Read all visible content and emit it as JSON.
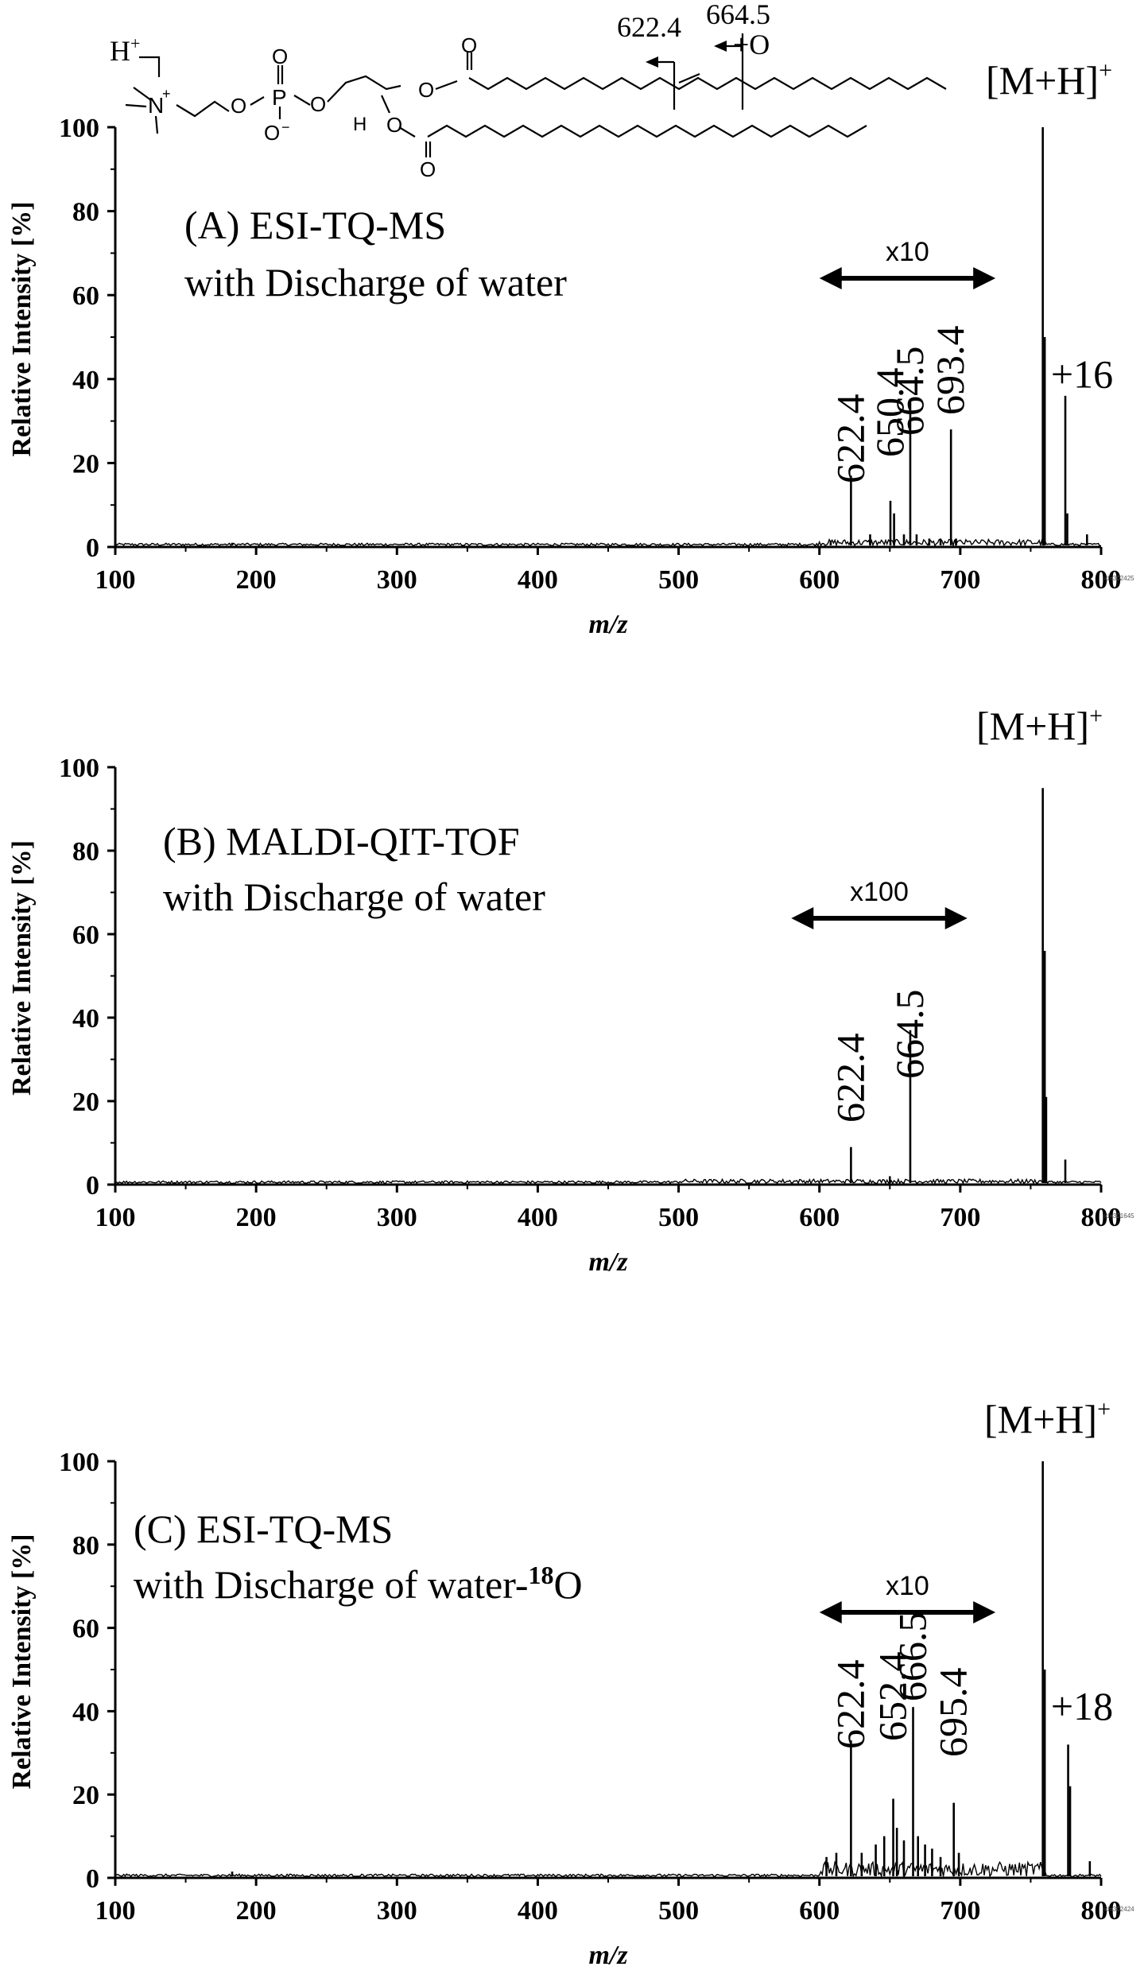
{
  "structure_labels": {
    "proton": "H",
    "proton_sup": "+",
    "cleave1": "622.4",
    "cleave2": "664.5",
    "cleave2_note": "+O"
  },
  "chart_data": [
    {
      "type": "line",
      "panel": "A",
      "title_line1": "(A) ESI-TQ-MS",
      "title_line2": "with Discharge of water",
      "xlabel": "m/z",
      "ylabel": "Relative Intensity [%]",
      "xlim": [
        100,
        800
      ],
      "ylim": [
        0,
        100
      ],
      "xticks": [
        "100",
        "200",
        "300",
        "400",
        "500",
        "600",
        "700",
        "800"
      ],
      "yticks": [
        "0",
        "20",
        "40",
        "60",
        "80",
        "100"
      ],
      "magnification": "x10",
      "mag_range": [
        600,
        725
      ],
      "stamp": "id=302425",
      "peaks": [
        {
          "x": 183,
          "y": 1.0
        },
        {
          "x": 608,
          "y": 1.5
        },
        {
          "x": 622.4,
          "y": 17
        },
        {
          "x": 636,
          "y": 3
        },
        {
          "x": 650.4,
          "y": 11
        },
        {
          "x": 653,
          "y": 8
        },
        {
          "x": 660,
          "y": 3
        },
        {
          "x": 664.5,
          "y": 35
        },
        {
          "x": 669,
          "y": 3
        },
        {
          "x": 678,
          "y": 2
        },
        {
          "x": 686,
          "y": 2
        },
        {
          "x": 693.4,
          "y": 28
        },
        {
          "x": 697,
          "y": 2
        },
        {
          "x": 758.6,
          "y": 100
        },
        {
          "x": 760,
          "y": 50
        },
        {
          "x": 774.6,
          "y": 36
        },
        {
          "x": 776,
          "y": 8
        },
        {
          "x": 790,
          "y": 3
        }
      ],
      "labels": [
        {
          "text": "622.4",
          "x": 622.4
        },
        {
          "text": "650.4",
          "x": 650.4
        },
        {
          "text": "664.5",
          "x": 664.5
        },
        {
          "text": "693.4",
          "x": 693.4
        }
      ],
      "molecular_ion": "[M+H]",
      "molecular_ion_sup": "+",
      "shift_label": "+16"
    },
    {
      "type": "line",
      "panel": "B",
      "title_line1": "(B) MALDI-QIT-TOF",
      "title_line2": " with Discharge of water",
      "xlabel": "m/z",
      "ylabel": "Relative Intensity [%]",
      "xlim": [
        100,
        800
      ],
      "ylim": [
        0,
        100
      ],
      "xticks": [
        "100",
        "200",
        "300",
        "400",
        "500",
        "600",
        "700",
        "800"
      ],
      "yticks": [
        "0",
        "20",
        "40",
        "60",
        "80",
        "100"
      ],
      "magnification": "x100",
      "mag_range": [
        580,
        705
      ],
      "stamp": "id=301645",
      "peaks": [
        {
          "x": 622.4,
          "y": 9
        },
        {
          "x": 650,
          "y": 2
        },
        {
          "x": 664.5,
          "y": 37
        },
        {
          "x": 758.6,
          "y": 95
        },
        {
          "x": 760,
          "y": 56
        },
        {
          "x": 761,
          "y": 21
        },
        {
          "x": 774.6,
          "y": 6
        }
      ],
      "labels": [
        {
          "text": "622.4",
          "x": 622.4
        },
        {
          "text": "664.5",
          "x": 664.5
        }
      ],
      "molecular_ion": "[M+H]",
      "molecular_ion_sup": "+"
    },
    {
      "type": "line",
      "panel": "C",
      "title_line1": "(C) ESI-TQ-MS",
      "title_line2": "with Discharge of water-",
      "title_line2_sup": "18",
      "title_line2_end": "O",
      "xlabel": "m/z",
      "ylabel": "Relative Intensity [%]",
      "xlim": [
        100,
        800
      ],
      "ylim": [
        0,
        100
      ],
      "xticks": [
        "100",
        "200",
        "300",
        "400",
        "500",
        "600",
        "700",
        "800"
      ],
      "yticks": [
        "0",
        "20",
        "40",
        "60",
        "80",
        "100"
      ],
      "magnification": "x10",
      "mag_range": [
        600,
        725
      ],
      "stamp": "id=302424",
      "peaks": [
        {
          "x": 183,
          "y": 1.5
        },
        {
          "x": 605,
          "y": 5
        },
        {
          "x": 612,
          "y": 6
        },
        {
          "x": 622.4,
          "y": 33
        },
        {
          "x": 630,
          "y": 6
        },
        {
          "x": 640,
          "y": 8
        },
        {
          "x": 646,
          "y": 10
        },
        {
          "x": 652.4,
          "y": 19
        },
        {
          "x": 655,
          "y": 12
        },
        {
          "x": 660,
          "y": 9
        },
        {
          "x": 666.5,
          "y": 41
        },
        {
          "x": 670,
          "y": 10
        },
        {
          "x": 675,
          "y": 8
        },
        {
          "x": 680,
          "y": 7
        },
        {
          "x": 686,
          "y": 5
        },
        {
          "x": 695.4,
          "y": 18
        },
        {
          "x": 699,
          "y": 6
        },
        {
          "x": 758.6,
          "y": 100
        },
        {
          "x": 760,
          "y": 50
        },
        {
          "x": 776.6,
          "y": 32
        },
        {
          "x": 778,
          "y": 22
        },
        {
          "x": 792,
          "y": 4
        }
      ],
      "labels": [
        {
          "text": "622.4",
          "x": 622.4
        },
        {
          "text": "652.4",
          "x": 652.4
        },
        {
          "text": "666.5",
          "x": 666.5
        },
        {
          "text": "695.4",
          "x": 695.4
        }
      ],
      "molecular_ion": "[M+H]",
      "molecular_ion_sup": "+",
      "shift_label": "+18"
    }
  ]
}
